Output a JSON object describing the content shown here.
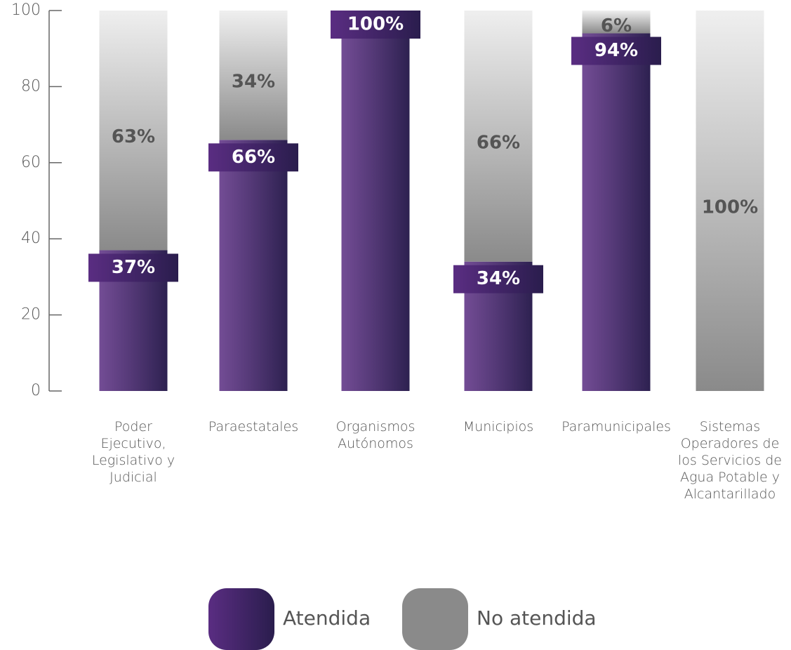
{
  "chart_data": {
    "type": "stacked_bar",
    "categories": [
      "Poder Ejecutivo, Legislativo y Judicial",
      "Paraestatales",
      "Organismos Autónomos",
      "Municipios",
      "Paramunicipales",
      "Sistemas Operadores de los Servicios de Agua Potable y Alcantarillado"
    ],
    "series": [
      {
        "name": "Atendida",
        "color": "#5a2d82",
        "values": [
          37,
          66,
          100,
          34,
          94,
          0
        ],
        "value_labels": [
          "37%",
          "66%",
          "100%",
          "34%",
          "94%",
          null
        ]
      },
      {
        "name": "No atendida",
        "color": "#8a8a8a",
        "values": [
          63,
          34,
          0,
          66,
          6,
          100
        ],
        "value_labels": [
          "63%",
          "34%",
          null,
          "66%",
          "6%",
          "100%"
        ]
      }
    ],
    "ylim": [
      0,
      100
    ],
    "yticks": [
      0,
      20,
      40,
      60,
      80,
      100
    ],
    "legend": "bottom"
  }
}
